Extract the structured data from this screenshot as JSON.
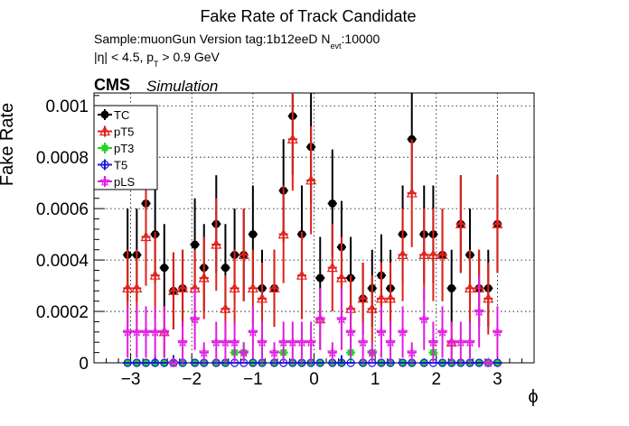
{
  "header": {
    "title": "Fake Rate of Track Candidate",
    "sample_prefix": "Sample:muonGun   Version tag:1b12eeD  N",
    "sample_sub": "evt",
    "sample_suffix": ":10000",
    "cut_prefix": "|η| < 4.5, p",
    "cut_sub": "T",
    "cut_suffix": " > 0.9 GeV",
    "cms": "CMS",
    "simulation": "Simulation"
  },
  "chart_data": {
    "type": "scatter",
    "xlabel": "ϕ",
    "ylabel": "Fake Rate",
    "xlim": [
      -3.6,
      3.6
    ],
    "ylim": [
      0,
      0.00105
    ],
    "grid": true,
    "legend_position": "top-left",
    "x_ticks": [
      -3,
      -2,
      -1,
      0,
      1,
      2,
      3
    ],
    "x_tick_labels": [
      "−3",
      "−2",
      "−1",
      "0",
      "1",
      "2",
      "3"
    ],
    "y_ticks": [
      0,
      0.0002,
      0.0004,
      0.0006,
      0.0008,
      0.001
    ],
    "y_tick_labels": [
      "0",
      "0.0002",
      "0.0004",
      "0.0006",
      "0.0008",
      "0.001"
    ],
    "x": [
      -3.05,
      -2.9,
      -2.75,
      -2.6,
      -2.45,
      -2.3,
      -2.15,
      -1.95,
      -1.8,
      -1.6,
      -1.45,
      -1.3,
      -1.15,
      -1.0,
      -0.85,
      -0.65,
      -0.5,
      -0.35,
      -0.2,
      -0.05,
      0.1,
      0.3,
      0.45,
      0.6,
      0.8,
      0.95,
      1.1,
      1.25,
      1.45,
      1.6,
      1.8,
      1.95,
      2.1,
      2.25,
      2.4,
      2.55,
      2.7,
      2.85,
      3.0
    ],
    "series": [
      {
        "name": "TC",
        "color": "#000000",
        "marker": "filled-circle",
        "values": [
          0.00042,
          0.00042,
          0.00062,
          0.0005,
          0.00037,
          0.00028,
          0.00029,
          0.00046,
          0.00037,
          0.00054,
          0.00037,
          0.00042,
          0.00042,
          0.0005,
          0.00029,
          0.00029,
          0.00067,
          0.00096,
          0.0005,
          0.00084,
          0.00033,
          0.00062,
          0.00045,
          0.00033,
          0.00025,
          0.00029,
          0.00034,
          0.00029,
          0.0005,
          0.00087,
          0.0005,
          0.0005,
          0.00042,
          0.00029,
          0.00054,
          0.00042,
          0.00029,
          0.00029,
          0.00054
        ],
        "errors": [
          0.00018,
          0.00018,
          0.00021,
          0.00019,
          0.00017,
          0.00015,
          0.00015,
          0.00018,
          0.00017,
          0.00019,
          0.00017,
          0.00018,
          0.00018,
          0.00019,
          0.00015,
          0.00015,
          0.0002,
          0.00023,
          0.00019,
          0.00022,
          0.00016,
          0.00021,
          0.00018,
          0.00016,
          0.00014,
          0.00015,
          0.00016,
          0.00015,
          0.00019,
          0.00022,
          0.00019,
          0.00019,
          0.00018,
          0.00015,
          0.00019,
          0.00018,
          0.00015,
          0.00015,
          0.00019
        ]
      },
      {
        "name": "pT5",
        "color": "#e0201a",
        "marker": "open-triangle",
        "values": [
          0.00029,
          0.00029,
          0.00049,
          0.00034,
          0.00012,
          0.00028,
          0.00029,
          0.00029,
          0.00033,
          0.00046,
          0.00021,
          0.00029,
          0.00042,
          0.00029,
          0.00025,
          0.00029,
          0.0005,
          0.00087,
          0.00034,
          0.00071,
          0.00017,
          0.00037,
          0.00033,
          0.00021,
          0.00025,
          0.00021,
          0.00025,
          0.00025,
          0.00042,
          0.00066,
          0.00042,
          0.00042,
          0.00042,
          8e-05,
          0.00054,
          0.00029,
          0.00029,
          0.00025,
          0.00054
        ],
        "errors": [
          0.00015,
          0.00015,
          0.00019,
          0.00017,
          0.0001,
          0.00015,
          0.00015,
          0.00015,
          0.00016,
          0.00018,
          0.00013,
          0.00015,
          0.00018,
          0.00015,
          0.00014,
          0.00015,
          0.00019,
          0.0002,
          0.00017,
          0.00021,
          0.00012,
          0.00017,
          0.00016,
          0.00013,
          0.00014,
          0.00013,
          0.00014,
          0.00014,
          0.00018,
          0.00021,
          0.00018,
          0.00018,
          0.00018,
          8e-05,
          0.00019,
          0.00015,
          0.00015,
          0.00014,
          0.00019
        ]
      },
      {
        "name": "pT3",
        "color": "#22d322",
        "marker": "filled-square",
        "values": [
          0,
          0,
          0,
          0,
          0,
          0,
          0,
          0,
          0,
          0,
          0,
          4e-05,
          4e-05,
          0,
          0,
          0,
          4e-05,
          0,
          0,
          0,
          0,
          0,
          0,
          4e-05,
          0,
          4e-05,
          0,
          0,
          0,
          0,
          0,
          4e-05,
          0,
          0,
          0,
          0,
          0,
          0,
          0
        ],
        "errors": [
          0,
          0,
          0,
          0,
          0,
          0,
          0,
          0,
          0,
          0,
          0,
          4e-05,
          4e-05,
          0,
          0,
          0,
          4e-05,
          0,
          0,
          0,
          0,
          0,
          0,
          4e-05,
          0,
          4e-05,
          0,
          0,
          0,
          0,
          0,
          4e-05,
          0,
          0,
          0,
          0,
          0,
          0,
          0
        ]
      },
      {
        "name": "T5",
        "color": "#1c1cd6",
        "marker": "open-circle",
        "values": [
          0,
          0,
          0,
          0,
          0,
          0,
          0,
          0,
          0,
          0,
          0,
          0,
          0,
          0,
          0,
          0,
          0,
          0,
          0,
          0,
          0,
          0,
          0,
          0,
          0,
          0,
          0,
          0,
          0,
          0,
          0,
          0,
          0,
          0,
          0,
          0,
          0,
          0,
          0
        ],
        "errors": [
          0,
          0,
          0,
          3e-05,
          0,
          3e-05,
          0,
          0,
          0,
          0,
          0,
          0,
          0,
          0,
          0,
          0,
          0,
          0,
          0,
          0,
          0,
          0,
          3e-05,
          0,
          0,
          0,
          0,
          0,
          0,
          0,
          0,
          0,
          0,
          0,
          0,
          0,
          0,
          0,
          0
        ]
      },
      {
        "name": "pLS",
        "color": "#e01de0",
        "marker": "open-star",
        "values": [
          0.00012,
          0.00012,
          0.00012,
          0.00012,
          0.00012,
          0,
          8e-05,
          0.00017,
          4e-05,
          8e-05,
          8e-05,
          8e-05,
          4e-05,
          0.00012,
          8e-05,
          4e-05,
          8e-05,
          8e-05,
          8e-05,
          8e-05,
          0.00017,
          4e-05,
          0.00017,
          0.00012,
          8e-05,
          4e-05,
          0.00012,
          8e-05,
          0.00012,
          4e-05,
          0.00017,
          8e-05,
          0.00012,
          8e-05,
          8e-05,
          8e-05,
          0.0002,
          0,
          0.00012
        ],
        "errors": [
          0.0001,
          0.0001,
          0.0001,
          0.0001,
          0.0001,
          0,
          8e-05,
          0.00012,
          4e-05,
          8e-05,
          8e-05,
          8e-05,
          4e-05,
          0.0001,
          8e-05,
          4e-05,
          8e-05,
          8e-05,
          8e-05,
          8e-05,
          0.00012,
          4e-05,
          0.00012,
          0.0001,
          8e-05,
          4e-05,
          0.0001,
          8e-05,
          0.0001,
          4e-05,
          0.00012,
          8e-05,
          0.0001,
          8e-05,
          8e-05,
          8e-05,
          0.00014,
          0,
          0.0001
        ]
      }
    ]
  }
}
